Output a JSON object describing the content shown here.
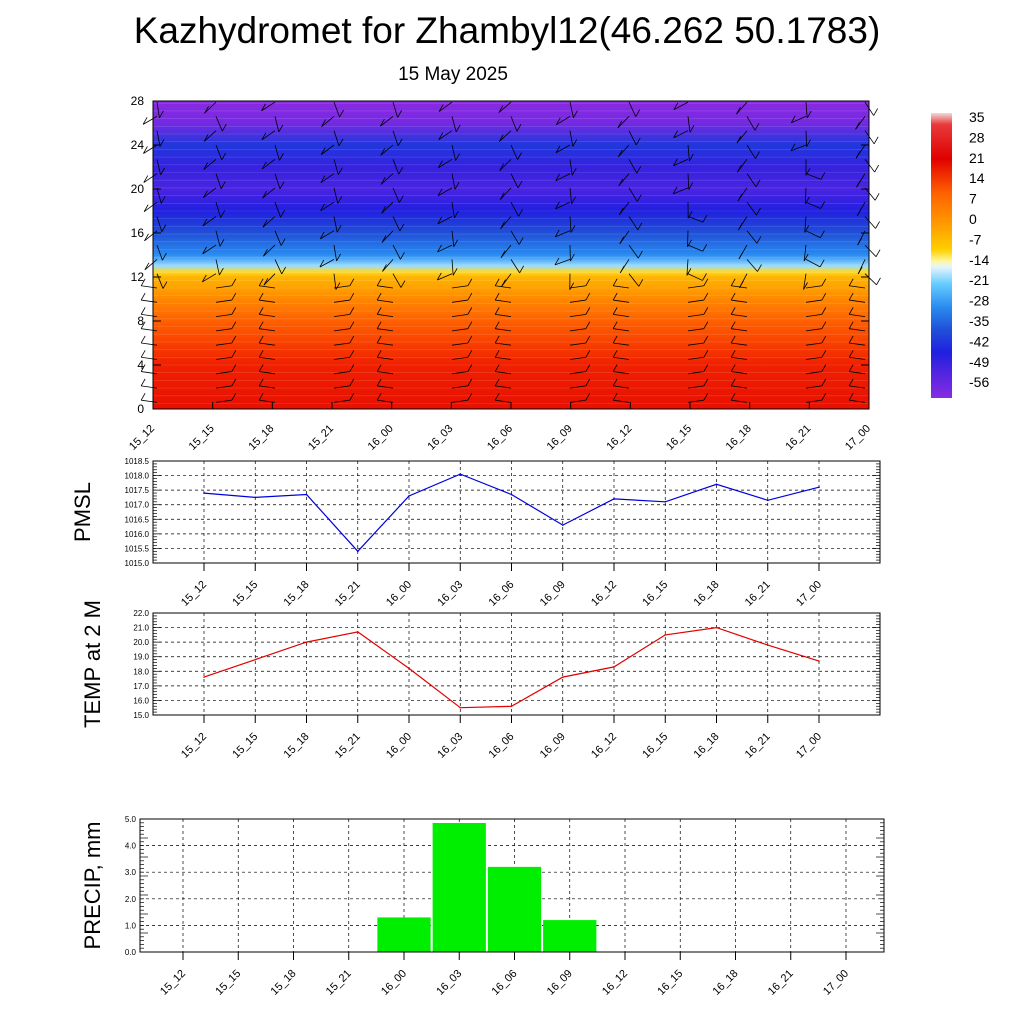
{
  "title": "Kazhydromet for Zhambyl12(46.262 50.1783)",
  "subtitle": "15 May 2025",
  "colors": {
    "pmsl_line": "#0000dd",
    "temp_line": "#e00000",
    "precip_bar": "#00ee00",
    "grid": "#000000"
  },
  "chart_data": [
    {
      "type": "heatmap",
      "title": "",
      "x_ticks": [
        "15_12",
        "15_15",
        "15_18",
        "15_21",
        "16_00",
        "16_03",
        "16_06",
        "16_09",
        "16_12",
        "16_15",
        "16_18",
        "16_21",
        "17_00"
      ],
      "y_ticks": [
        "0",
        "4",
        "8",
        "12",
        "16",
        "20",
        "24",
        "28"
      ],
      "ylim": [
        0,
        28
      ],
      "colorbar_labels": [
        "35",
        "28",
        "21",
        "14",
        "7",
        "0",
        "-7",
        "-14",
        "-21",
        "-28",
        "-35",
        "-42",
        "-49",
        "-56"
      ],
      "colorbar_range": [
        -60,
        40
      ],
      "levels": [
        0,
        2,
        4,
        6,
        8,
        10,
        11,
        12,
        12.5,
        13,
        14,
        16,
        18,
        20,
        22,
        24,
        26,
        28
      ],
      "values": [
        22,
        19,
        16,
        12,
        8,
        3,
        0,
        -3,
        -8,
        -18,
        -30,
        -42,
        -50,
        -54,
        -52,
        -46,
        -58,
        -60
      ],
      "wind_barbs": "present"
    },
    {
      "type": "line",
      "ylabel": "PMSL",
      "categories": [
        "15_12",
        "15_15",
        "15_18",
        "15_21",
        "16_00",
        "16_03",
        "16_06",
        "16_09",
        "16_12",
        "16_15",
        "16_18",
        "16_21",
        "17_00"
      ],
      "series": [
        {
          "values": [
            1017.4,
            1017.25,
            1017.35,
            1015.4,
            1017.3,
            1018.05,
            1017.35,
            1016.3,
            1017.2,
            1017.1,
            1017.7,
            1017.15,
            1017.6
          ]
        }
      ],
      "ylim": [
        1015.0,
        1018.5
      ],
      "y_ticks": [
        "1015.0",
        "1015.5",
        "1016.0",
        "1016.5",
        "1017.0",
        "1017.5",
        "1018.0",
        "1018.5"
      ],
      "grid": true
    },
    {
      "type": "line",
      "ylabel": "TEMP at 2 M",
      "categories": [
        "15_12",
        "15_15",
        "15_18",
        "15_21",
        "16_00",
        "16_03",
        "16_06",
        "16_09",
        "16_12",
        "16_15",
        "16_18",
        "16_21",
        "17_00"
      ],
      "series": [
        {
          "values": [
            17.6,
            18.8,
            20.0,
            20.7,
            18.2,
            15.5,
            15.6,
            17.6,
            18.3,
            20.5,
            21.0,
            19.8,
            18.7
          ]
        }
      ],
      "ylim": [
        15.0,
        22.0
      ],
      "y_ticks": [
        "15.0",
        "16.0",
        "17.0",
        "18.0",
        "19.0",
        "20.0",
        "21.0",
        "22.0"
      ],
      "grid": true
    },
    {
      "type": "bar",
      "ylabel": "PRECIP, mm",
      "categories": [
        "15_12",
        "15_15",
        "15_18",
        "15_21",
        "16_00",
        "16_03",
        "16_06",
        "16_09",
        "16_12",
        "16_15",
        "16_18",
        "16_21",
        "17_00"
      ],
      "values": [
        0,
        0,
        0,
        0,
        1.3,
        4.85,
        3.2,
        1.2,
        0,
        0,
        0,
        0,
        0
      ],
      "ylim": [
        0.0,
        5.0
      ],
      "y_ticks": [
        "0.0",
        "1.0",
        "2.0",
        "3.0",
        "4.0",
        "5.0"
      ],
      "grid": true
    }
  ]
}
